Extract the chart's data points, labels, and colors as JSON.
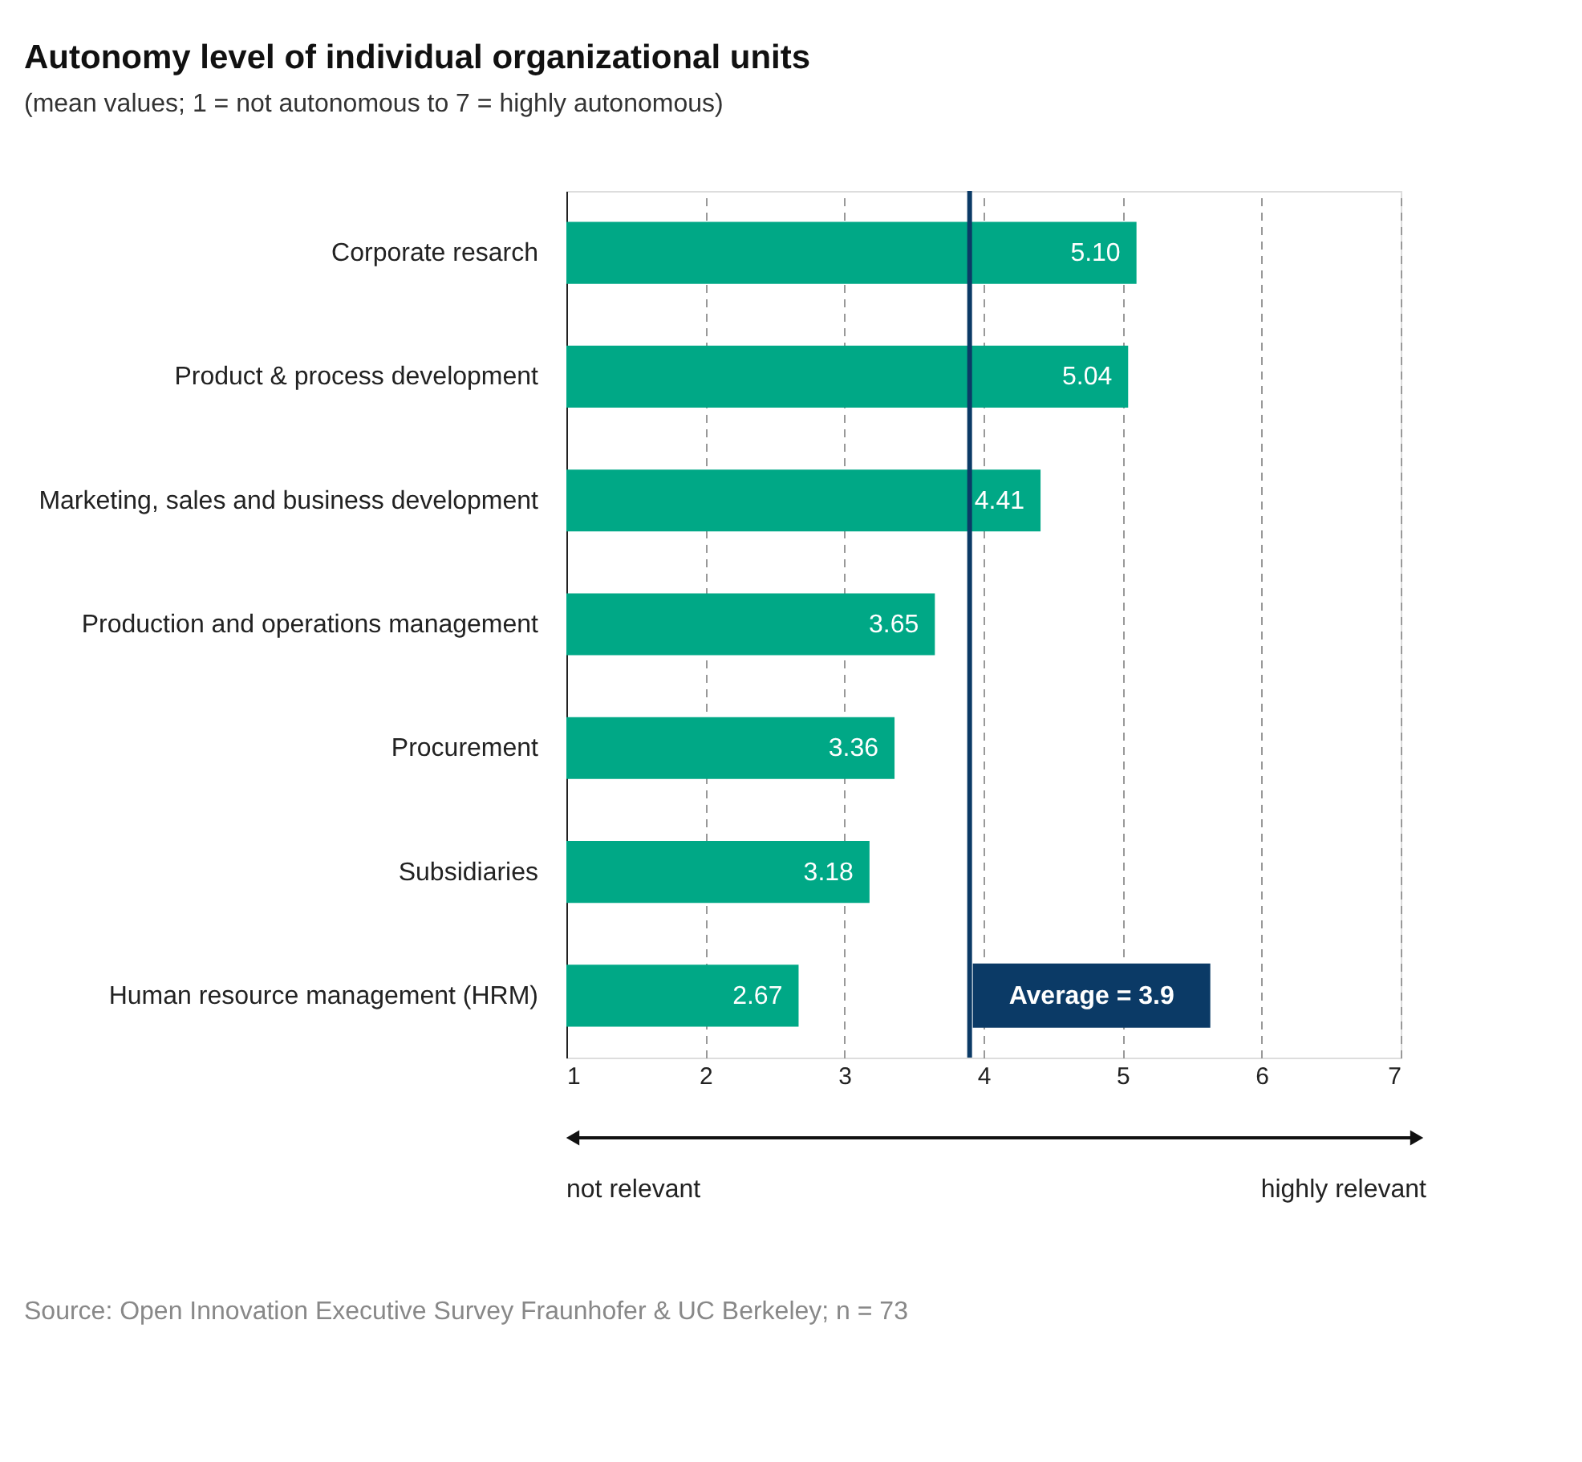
{
  "chart_data": {
    "type": "bar",
    "orientation": "horizontal",
    "title": "Autonomy level of individual organizational units",
    "subtitle": "(mean values; 1 = not autonomous to 7 = highly autonomous)",
    "categories": [
      "Corporate resarch",
      "Product & process development",
      "Marketing, sales and business development",
      "Production and operations management",
      "Procurement",
      "Subsidiaries",
      "Human resource management (HRM)"
    ],
    "values": [
      5.1,
      5.04,
      4.41,
      3.65,
      3.36,
      3.18,
      2.67
    ],
    "value_labels": [
      "5.10",
      "5.04",
      "4.41",
      "3.65",
      "3.36",
      "3.18",
      "2.67"
    ],
    "color": "#00a886",
    "xlim": [
      1,
      7
    ],
    "xticks": [
      1,
      2,
      3,
      4,
      5,
      6,
      7
    ],
    "grid": "x",
    "ref_lines": [
      {
        "axis": "x",
        "value": 3.9,
        "label": "Average = 3.9",
        "color": "#0b3a66"
      }
    ],
    "annotations": [
      "not relevant",
      "highly relevant",
      "Source: Open Innovation Executive Survey Fraunhofer & UC Berkeley; n = 73"
    ]
  }
}
